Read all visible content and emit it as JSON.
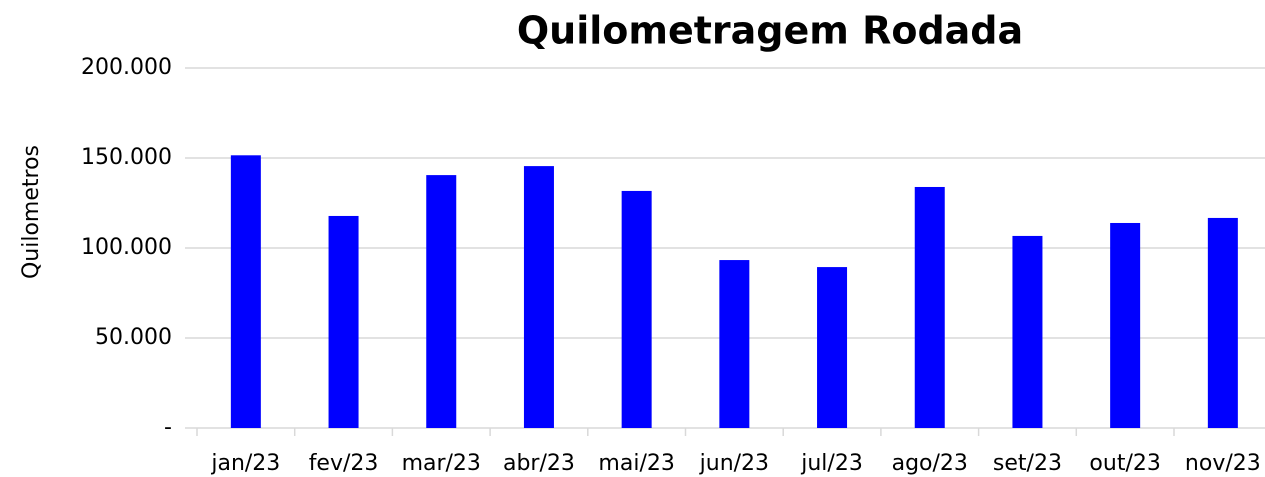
{
  "chart_data": {
    "type": "bar",
    "title": "Quilometragem Rodada",
    "y_label": "Quilometros",
    "categories": [
      "jan/23",
      "fev/23",
      "mar/23",
      "abr/23",
      "mai/23",
      "jun/23",
      "jul/23",
      "ago/23",
      "set/23",
      "out/23",
      "nov/23"
    ],
    "values": [
      151500,
      117800,
      140500,
      145500,
      131700,
      93300,
      89400,
      133900,
      106700,
      113900,
      116700
    ],
    "color": "#0000ff",
    "ylim": [
      0,
      200000
    ],
    "yticks": [
      {
        "value": 0,
        "label": "-"
      },
      {
        "value": 50000,
        "label": "50.000"
      },
      {
        "value": 100000,
        "label": "100.000"
      },
      {
        "value": 150000,
        "label": "150.000"
      },
      {
        "value": 200000,
        "label": "200.000"
      }
    ],
    "grid": true
  }
}
